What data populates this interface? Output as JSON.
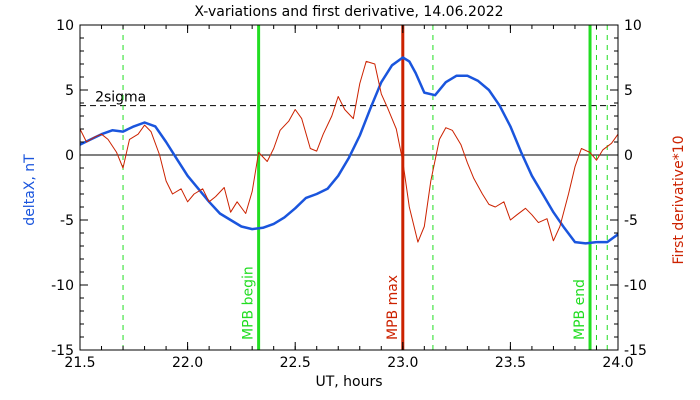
{
  "chart_data": {
    "type": "line",
    "title": "X-variations and first derivative, 14.06.2022",
    "xlabel": "UT, hours",
    "ylabel_left": "deltaX, nT",
    "ylabel_right": "First derivative*10",
    "xlim": [
      21.5,
      24.0
    ],
    "ylim": [
      -15,
      10
    ],
    "x_ticks": [
      "21.5",
      "22.0",
      "22.5",
      "23.0",
      "23.5",
      "24.0"
    ],
    "y_ticks_left": [
      "10",
      "5",
      "0",
      "-5",
      "-10",
      "-15"
    ],
    "y_ticks_right": [
      "10",
      "5",
      "0",
      "-5",
      "-10",
      "-15"
    ],
    "colors": {
      "deltaX": "#1a55dd",
      "derivative": "#cc2200",
      "mpb_lines": "#22dd22",
      "mpb_max": "#cc2200",
      "zero_line": "#000000",
      "threshold": "#000000"
    },
    "threshold": {
      "label": "2sigma",
      "value": 3.8
    },
    "zero_line": 0,
    "vertical_lines": [
      {
        "x": 22.33,
        "label": "MPB begin",
        "style": "solid",
        "color": "green"
      },
      {
        "x": 23.0,
        "label": "MPB max",
        "style": "solid",
        "color": "red"
      },
      {
        "x": 23.87,
        "label": "MPB end",
        "style": "solid",
        "color": "green"
      },
      {
        "x": 21.7,
        "label": "",
        "style": "dashed",
        "color": "green"
      },
      {
        "x": 23.14,
        "label": "",
        "style": "dashed",
        "color": "green"
      },
      {
        "x": 23.9,
        "label": "",
        "style": "dashed",
        "color": "green"
      },
      {
        "x": 23.95,
        "label": "",
        "style": "dashed",
        "color": "green"
      }
    ],
    "series": [
      {
        "name": "deltaX, nT",
        "axis": "left",
        "x": [
          21.5,
          21.55,
          21.6,
          21.65,
          21.7,
          21.75,
          21.8,
          21.85,
          21.9,
          21.95,
          22.0,
          22.05,
          22.1,
          22.15,
          22.2,
          22.25,
          22.3,
          22.35,
          22.4,
          22.45,
          22.5,
          22.55,
          22.6,
          22.65,
          22.7,
          22.75,
          22.8,
          22.85,
          22.9,
          22.95,
          23.0,
          23.03,
          23.06,
          23.1,
          23.15,
          23.2,
          23.25,
          23.3,
          23.35,
          23.4,
          23.45,
          23.5,
          23.55,
          23.6,
          23.65,
          23.7,
          23.75,
          23.8,
          23.85,
          23.9,
          23.95,
          24.0
        ],
        "values": [
          0.8,
          1.2,
          1.6,
          1.9,
          1.8,
          2.2,
          2.5,
          2.2,
          1.0,
          -0.3,
          -1.6,
          -2.6,
          -3.6,
          -4.5,
          -5.0,
          -5.5,
          -5.7,
          -5.6,
          -5.3,
          -4.8,
          -4.1,
          -3.3,
          -3.0,
          -2.6,
          -1.6,
          -0.2,
          1.5,
          3.6,
          5.6,
          6.9,
          7.5,
          7.2,
          6.3,
          4.8,
          4.6,
          5.6,
          6.1,
          6.1,
          5.7,
          5.0,
          3.8,
          2.2,
          0.2,
          -1.6,
          -3.0,
          -4.4,
          -5.6,
          -6.7,
          -6.8,
          -6.7,
          -6.7,
          -6.1
        ]
      },
      {
        "name": "First derivative*10",
        "axis": "right",
        "x": [
          21.5,
          21.53,
          21.57,
          21.6,
          21.63,
          21.67,
          21.7,
          21.73,
          21.77,
          21.8,
          21.83,
          21.87,
          21.9,
          21.93,
          21.97,
          22.0,
          22.03,
          22.07,
          22.1,
          22.13,
          22.17,
          22.2,
          22.23,
          22.27,
          22.3,
          22.33,
          22.37,
          22.4,
          22.43,
          22.47,
          22.5,
          22.53,
          22.57,
          22.6,
          22.63,
          22.67,
          22.7,
          22.73,
          22.77,
          22.8,
          22.83,
          22.87,
          22.9,
          22.93,
          22.97,
          23.0,
          23.03,
          23.07,
          23.1,
          23.13,
          23.17,
          23.2,
          23.23,
          23.27,
          23.3,
          23.33,
          23.37,
          23.4,
          23.43,
          23.47,
          23.5,
          23.53,
          23.57,
          23.6,
          23.63,
          23.67,
          23.7,
          23.73,
          23.77,
          23.8,
          23.83,
          23.87,
          23.9,
          23.93,
          23.97,
          24.0
        ],
        "values": [
          2.0,
          1.0,
          1.4,
          1.6,
          1.2,
          0.2,
          -1.0,
          1.2,
          1.6,
          2.3,
          1.8,
          0.0,
          -2.0,
          -3.0,
          -2.6,
          -3.6,
          -3.0,
          -2.6,
          -3.6,
          -3.2,
          -2.5,
          -4.4,
          -3.6,
          -4.5,
          -2.8,
          0.2,
          -0.5,
          0.5,
          1.9,
          2.6,
          3.5,
          2.8,
          0.5,
          0.3,
          1.6,
          3.0,
          4.5,
          3.5,
          2.8,
          5.5,
          7.2,
          7.0,
          4.7,
          3.6,
          2.0,
          -0.5,
          -4.0,
          -6.7,
          -5.5,
          -2.0,
          1.2,
          2.1,
          1.9,
          0.8,
          -0.6,
          -1.8,
          -3.0,
          -3.8,
          -4.0,
          -3.6,
          -5.0,
          -4.6,
          -4.1,
          -4.6,
          -5.2,
          -4.9,
          -6.6,
          -5.5,
          -3.0,
          -0.9,
          0.5,
          0.2,
          -0.4,
          0.4,
          0.9,
          1.6
        ]
      }
    ]
  }
}
